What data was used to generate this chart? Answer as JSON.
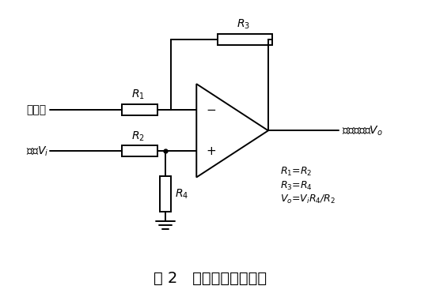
{
  "title": "图 2   信号调节电路形式",
  "bg_color": "#ffffff",
  "line_color": "#000000",
  "label_xinhao_di": "信号地",
  "label_xinhao_vi": "信号$V_i$",
  "label_r1": "$R_1$",
  "label_r2": "$R_2$",
  "label_r3": "$R_3$",
  "label_r4": "$R_4$",
  "label_output": "调理后信号$V_o$",
  "label_minus": "−",
  "label_plus": "+",
  "eq1": "$R_1$=$R_2$",
  "eq2": "$R_3$=$R_4$",
  "eq3": "$V_o$=$V_i$$R_4$/$R_2$"
}
